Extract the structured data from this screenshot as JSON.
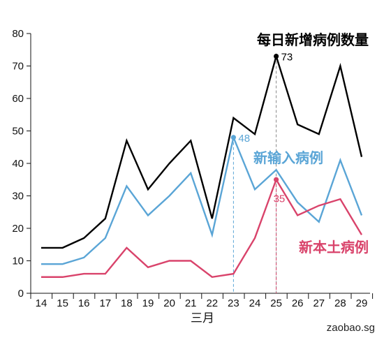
{
  "chart_data": {
    "type": "line",
    "categories": [
      "14",
      "15",
      "16",
      "17",
      "18",
      "19",
      "20",
      "21",
      "22",
      "23",
      "24",
      "25",
      "26",
      "27",
      "28",
      "29"
    ],
    "xlabel": "三月",
    "ylabel": "",
    "ylim": [
      0,
      80
    ],
    "yticks": [
      "0",
      "10",
      "20",
      "30",
      "40",
      "50",
      "60",
      "70",
      "80"
    ],
    "grid": false,
    "series": [
      {
        "name": "每日新增病例数量",
        "color": "#000000",
        "values": [
          14,
          14,
          17,
          23,
          47,
          32,
          40,
          47,
          23,
          54,
          49,
          73,
          52,
          49,
          70,
          42
        ]
      },
      {
        "name": "新输入病例",
        "color": "#5aa5d6",
        "values": [
          9,
          9,
          11,
          17,
          33,
          24,
          30,
          37,
          18,
          48,
          32,
          38,
          28,
          22,
          41,
          24
        ]
      },
      {
        "name": "新本土病例",
        "color": "#d9436b",
        "values": [
          5,
          5,
          6,
          6,
          14,
          8,
          10,
          10,
          5,
          6,
          17,
          35,
          24,
          27,
          29,
          18
        ]
      }
    ],
    "annotations": [
      {
        "category": "25",
        "value": 73,
        "text": "73",
        "series": 0
      },
      {
        "category": "23",
        "value": 48,
        "text": "48",
        "series": 1
      },
      {
        "category": "25",
        "value": 35,
        "text": "35",
        "series": 2
      }
    ]
  },
  "credit": "zaobao.sg"
}
